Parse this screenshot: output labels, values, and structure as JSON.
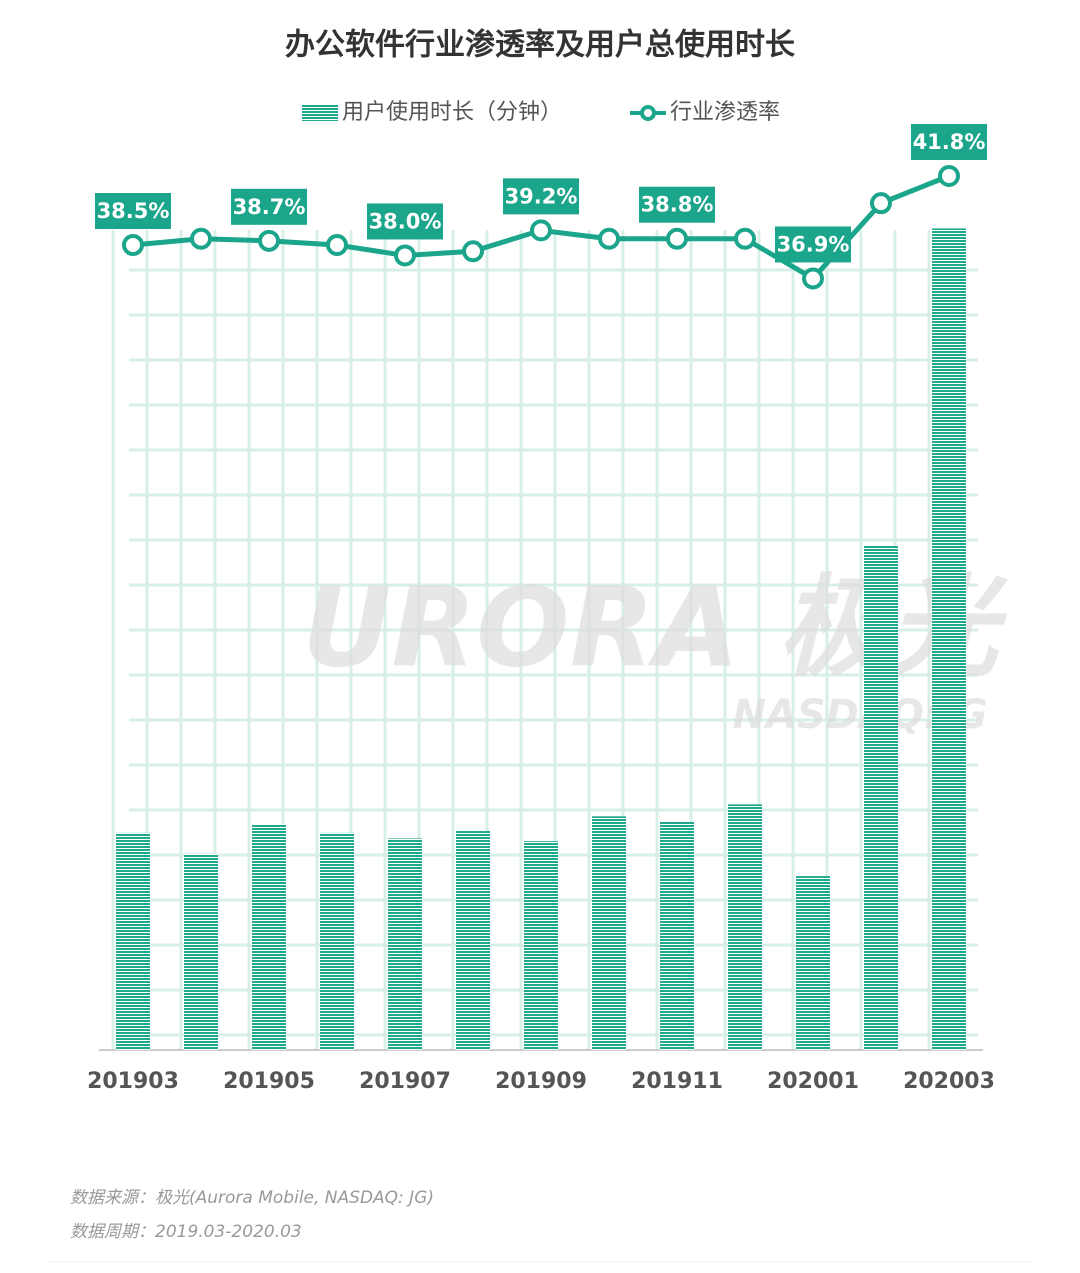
{
  "chart_data": {
    "type": "bar",
    "title": "办公软件行业渗透率及用户总使用时长",
    "categories": [
      "201903",
      null,
      "201905",
      null,
      "201907",
      null,
      "201909",
      null,
      "201911",
      null,
      "202001",
      null,
      "202003"
    ],
    "ylim": [
      0,
      1000
    ],
    "y2lim": [
      0,
      44
    ],
    "legend": "top",
    "series": [
      {
        "name": "用户使用时长（分钟）",
        "type": "bar",
        "color": "#1fa98b",
        "values": [
          236,
          213,
          245,
          236,
          230,
          238,
          227,
          254,
          248,
          267,
          189,
          548,
          893
        ]
      },
      {
        "name": "行业渗透率",
        "type": "line",
        "axis": "y2",
        "color": "#1ba58a",
        "values": [
          38.5,
          38.8,
          38.7,
          38.5,
          38.0,
          38.2,
          39.2,
          38.8,
          38.8,
          38.8,
          36.9,
          40.5,
          41.8
        ],
        "value_labels": [
          "38.5%",
          null,
          "38.7%",
          null,
          "38.0%",
          null,
          "39.2%",
          null,
          "38.8%",
          null,
          "36.9%",
          null,
          "41.8%"
        ]
      }
    ],
    "watermark": "URORA 极光",
    "watermark_sub": "NASDAQ:JG",
    "source": "数据来源：极光(Aurora Mobile, NASDAQ: JG)",
    "period": "数据周期：2019.03-2020.03"
  }
}
